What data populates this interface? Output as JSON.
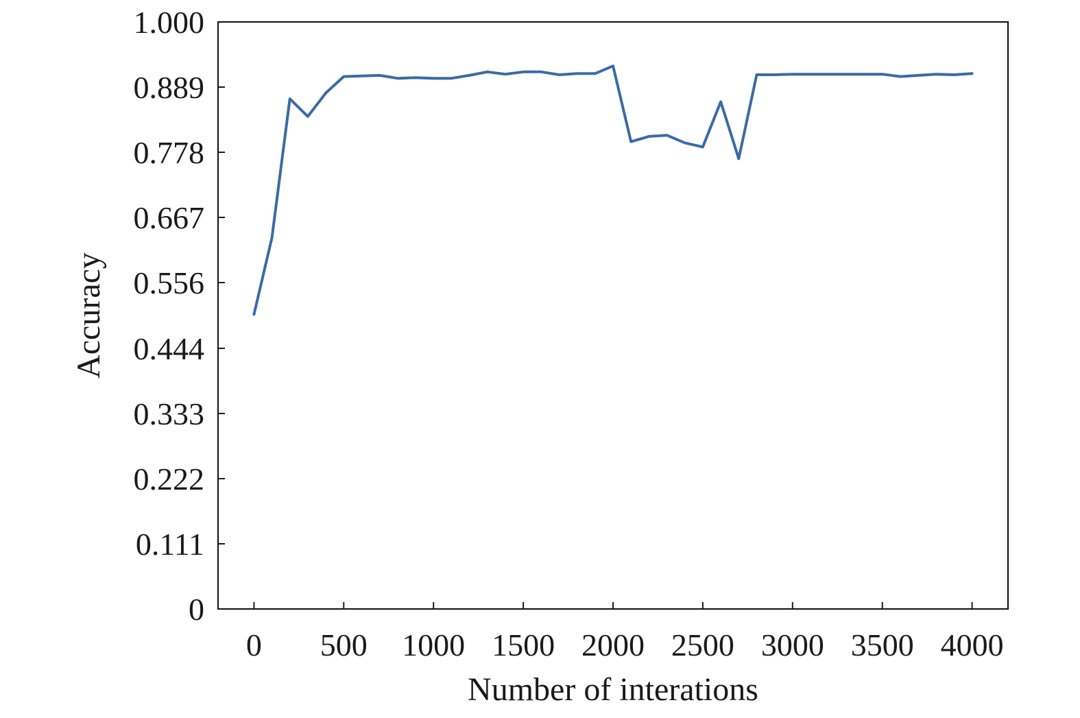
{
  "chart_data": {
    "type": "line",
    "title": "",
    "xlabel": "Number of interations",
    "ylabel": "Accuracy",
    "xlim": [
      -200,
      4200
    ],
    "ylim": [
      0,
      1.0
    ],
    "x_ticks": [
      0,
      500,
      1000,
      1500,
      2000,
      2500,
      3000,
      3500,
      4000
    ],
    "x_tick_labels": [
      "0",
      "500",
      "1000",
      "1500",
      "2000",
      "2500",
      "3000",
      "3500",
      "4000"
    ],
    "y_ticks": [
      0,
      0.111,
      0.222,
      0.333,
      0.444,
      0.556,
      0.667,
      0.778,
      0.889,
      1.0
    ],
    "y_tick_labels": [
      "0",
      "0.111",
      "0.222",
      "0.333",
      "0.444",
      "0.556",
      "0.667",
      "0.778",
      "0.889",
      "1.000"
    ],
    "grid": false,
    "series_color": "#3a6ba5",
    "series": [
      {
        "x": [
          0,
          100,
          200,
          300,
          400,
          500,
          600,
          700,
          800,
          900,
          1000,
          1100,
          1200,
          1300,
          1400,
          1500,
          1600,
          1700,
          1800,
          1900,
          2000,
          2100,
          2200,
          2300,
          2400,
          2500,
          2600,
          2700,
          2800,
          2900,
          3000,
          3100,
          3200,
          3300,
          3400,
          3500,
          3600,
          3700,
          3800,
          3900,
          4000
        ],
        "values": [
          0.502,
          0.632,
          0.869,
          0.839,
          0.879,
          0.907,
          0.908,
          0.909,
          0.904,
          0.905,
          0.904,
          0.904,
          0.909,
          0.915,
          0.911,
          0.915,
          0.915,
          0.91,
          0.912,
          0.912,
          0.925,
          0.796,
          0.805,
          0.807,
          0.794,
          0.787,
          0.864,
          0.767,
          0.91,
          0.91,
          0.911,
          0.911,
          0.911,
          0.911,
          0.911,
          0.911,
          0.907,
          0.909,
          0.911,
          0.91,
          0.912
        ]
      }
    ]
  }
}
